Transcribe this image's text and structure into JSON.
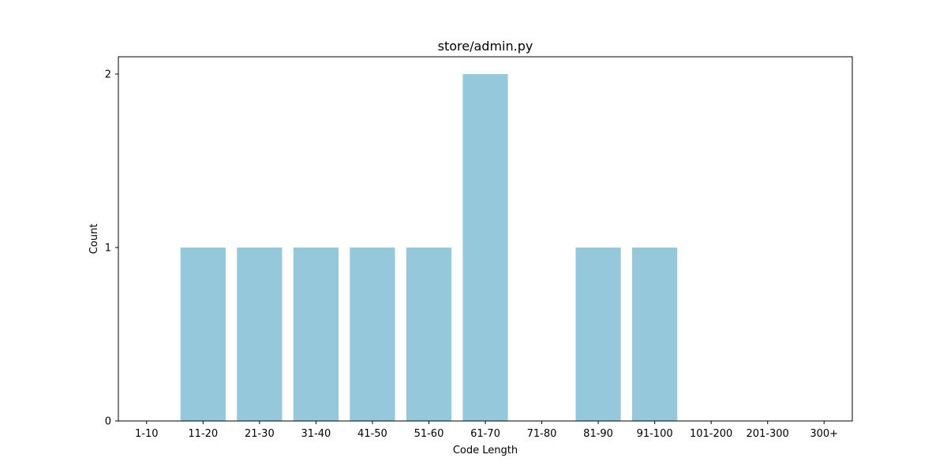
{
  "chart_data": {
    "type": "bar",
    "title": "store/admin.py",
    "xlabel": "Code Length",
    "ylabel": "Count",
    "categories": [
      "1-10",
      "11-20",
      "21-30",
      "31-40",
      "41-50",
      "51-60",
      "61-70",
      "71-80",
      "81-90",
      "91-100",
      "101-200",
      "201-300",
      "300+"
    ],
    "values": [
      0,
      1,
      1,
      1,
      1,
      1,
      2,
      0,
      1,
      1,
      0,
      0,
      0
    ],
    "ylim": [
      0,
      2.1
    ],
    "yticks": [
      0,
      1,
      2
    ],
    "bar_color": "#96c8dc",
    "grid": false,
    "legend": "none"
  }
}
